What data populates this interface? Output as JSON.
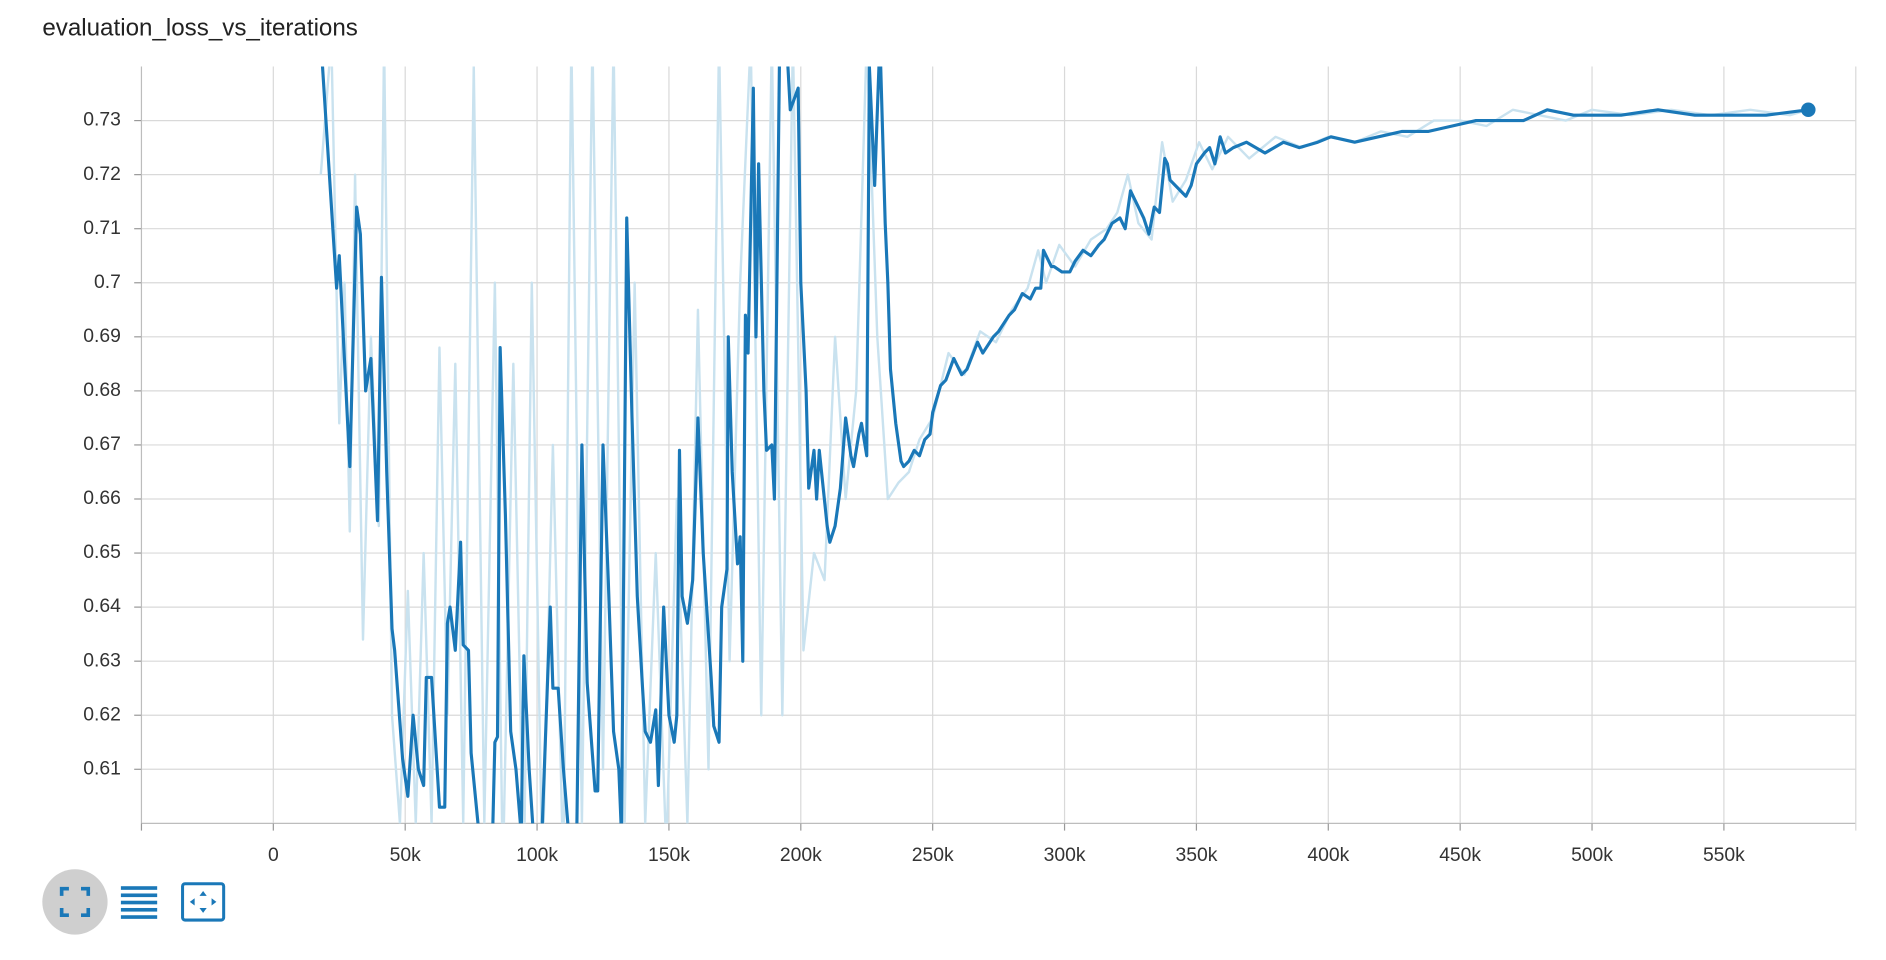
{
  "chart_data": {
    "type": "line",
    "title": "evaluation_loss_vs_iterations",
    "xlim": [
      -50000,
      600000
    ],
    "ylim": [
      0.6,
      0.74
    ],
    "xticks": [
      {
        "value": 0,
        "label": "0"
      },
      {
        "value": 50000,
        "label": "50k"
      },
      {
        "value": 100000,
        "label": "100k"
      },
      {
        "value": 150000,
        "label": "150k"
      },
      {
        "value": 200000,
        "label": "200k"
      },
      {
        "value": 250000,
        "label": "250k"
      },
      {
        "value": 300000,
        "label": "300k"
      },
      {
        "value": 350000,
        "label": "350k"
      },
      {
        "value": 400000,
        "label": "400k"
      },
      {
        "value": 450000,
        "label": "450k"
      },
      {
        "value": 500000,
        "label": "500k"
      },
      {
        "value": 550000,
        "label": "550k"
      }
    ],
    "yticks": [
      0.61,
      0.62,
      0.63,
      0.64,
      0.65,
      0.66,
      0.67,
      0.68,
      0.69,
      0.7,
      0.71,
      0.72,
      0.73
    ],
    "grid": true,
    "series": [
      {
        "color": "#c9e2ef",
        "x": [
          18000,
          22000,
          25000,
          27000,
          29000,
          31000,
          34000,
          37000,
          40000,
          42000,
          45000,
          48000,
          51000,
          54000,
          57000,
          60000,
          63000,
          66000,
          69000,
          72000,
          76000,
          80000,
          84000,
          87000,
          91000,
          95000,
          98000,
          102000,
          106000,
          110000,
          113000,
          117000,
          121000,
          125000,
          129000,
          133000,
          137000,
          141000,
          145000,
          149000,
          153000,
          157000,
          161000,
          165000,
          169000,
          173000,
          177000,
          181000,
          185000,
          189000,
          193000,
          197000,
          201000,
          205000,
          209000,
          213000,
          217000,
          221000,
          225000,
          229000,
          233000,
          237000,
          241000,
          245000,
          250000,
          256000,
          262000,
          268000,
          274000,
          280000,
          286000,
          290000,
          293000,
          298000,
          304000,
          310000,
          316000,
          320000,
          324000,
          328000,
          333000,
          337000,
          341000,
          346000,
          351000,
          356000,
          362000,
          370000,
          380000,
          390000,
          400000,
          410000,
          420000,
          430000,
          440000,
          450000,
          460000,
          470000,
          480000,
          490000,
          500000,
          515000,
          530000,
          545000,
          560000,
          575000,
          582000
        ],
        "values": [
          0.72,
          0.745,
          0.674,
          0.7,
          0.654,
          0.72,
          0.634,
          0.69,
          0.655,
          0.745,
          0.62,
          0.6,
          0.643,
          0.6,
          0.65,
          0.6,
          0.688,
          0.62,
          0.685,
          0.6,
          0.74,
          0.6,
          0.7,
          0.59,
          0.685,
          0.59,
          0.7,
          0.59,
          0.67,
          0.59,
          0.745,
          0.6,
          0.745,
          0.61,
          0.745,
          0.595,
          0.7,
          0.6,
          0.65,
          0.595,
          0.66,
          0.6,
          0.695,
          0.61,
          0.745,
          0.63,
          0.7,
          0.745,
          0.62,
          0.745,
          0.62,
          0.745,
          0.632,
          0.65,
          0.645,
          0.69,
          0.66,
          0.68,
          0.745,
          0.69,
          0.66,
          0.663,
          0.665,
          0.671,
          0.675,
          0.687,
          0.683,
          0.691,
          0.689,
          0.695,
          0.699,
          0.706,
          0.7,
          0.707,
          0.703,
          0.708,
          0.71,
          0.713,
          0.72,
          0.711,
          0.708,
          0.726,
          0.715,
          0.719,
          0.726,
          0.721,
          0.727,
          0.723,
          0.727,
          0.725,
          0.727,
          0.726,
          0.728,
          0.727,
          0.73,
          0.73,
          0.729,
          0.732,
          0.731,
          0.73,
          0.732,
          0.731,
          0.732,
          0.731,
          0.732,
          0.731,
          0.732
        ]
      },
      {
        "color": "#1a78b8",
        "x": [
          18000,
          24000,
          25000,
          29000,
          31600,
          33000,
          35000,
          37000,
          39500,
          41000,
          43000,
          45000,
          46000,
          49000,
          51000,
          53000,
          55000,
          57000,
          58000,
          60000,
          63000,
          65000,
          66000,
          67000,
          69000,
          71000,
          72000,
          74000,
          75000,
          78000,
          81000,
          83000,
          84000,
          85000,
          86000,
          88000,
          90000,
          92000,
          94000,
          95000,
          97000,
          99000,
          102000,
          105000,
          106000,
          108000,
          110000,
          112000,
          115000,
          117000,
          119000,
          122000,
          123000,
          125000,
          127000,
          129000,
          131000,
          132000,
          134000,
          136000,
          138000,
          140000,
          141000,
          143000,
          145000,
          146000,
          148000,
          150000,
          152000,
          153000,
          154000,
          155000,
          157000,
          159000,
          161000,
          163000,
          166000,
          167000,
          169000,
          170000,
          172000,
          172500,
          174000,
          176000,
          177000,
          178000,
          179000,
          180000,
          182000,
          183000,
          184000,
          186000,
          187000,
          189000,
          190000,
          192000,
          194000,
          196000,
          199000,
          200000,
          202000,
          203000,
          205000,
          206000,
          207000,
          210000,
          211000,
          213000,
          215000,
          217000,
          219000,
          220000,
          222000,
          223000,
          225000,
          226000,
          228000,
          230000,
          232000,
          233000,
          234000,
          236000,
          238000,
          239000,
          241000,
          243000,
          245000,
          247000,
          249000,
          250000,
          253000,
          255000,
          258000,
          261000,
          263000,
          267000,
          269000,
          273000,
          275000,
          279000,
          281000,
          284000,
          287000,
          289000,
          291000,
          292000,
          295000,
          296000,
          299000,
          302000,
          304000,
          307000,
          310000,
          313000,
          315000,
          318000,
          321000,
          323000,
          325000,
          328000,
          330000,
          332000,
          334000,
          336000,
          338000,
          339000,
          340000,
          344000,
          346000,
          348000,
          350000,
          353000,
          355000,
          357000,
          359000,
          361000,
          364000,
          369000,
          376000,
          383000,
          389000,
          396000,
          401000,
          410000,
          419000,
          428000,
          438000,
          447000,
          456000,
          465000,
          474000,
          483000,
          493000,
          502000,
          511000,
          525000,
          539000,
          552000,
          566000,
          582000
        ],
        "values": [
          0.745,
          0.699,
          0.705,
          0.666,
          0.714,
          0.709,
          0.68,
          0.686,
          0.656,
          0.701,
          0.665,
          0.636,
          0.632,
          0.612,
          0.605,
          0.62,
          0.61,
          0.607,
          0.627,
          0.627,
          0.603,
          0.603,
          0.637,
          0.64,
          0.632,
          0.652,
          0.633,
          0.632,
          0.613,
          0.598,
          0.595,
          0.595,
          0.615,
          0.616,
          0.688,
          0.657,
          0.617,
          0.61,
          0.598,
          0.631,
          0.61,
          0.595,
          0.6,
          0.64,
          0.625,
          0.625,
          0.61,
          0.598,
          0.596,
          0.67,
          0.626,
          0.606,
          0.606,
          0.67,
          0.645,
          0.617,
          0.61,
          0.598,
          0.712,
          0.675,
          0.642,
          0.625,
          0.617,
          0.615,
          0.621,
          0.607,
          0.64,
          0.62,
          0.615,
          0.62,
          0.669,
          0.642,
          0.637,
          0.645,
          0.675,
          0.65,
          0.627,
          0.618,
          0.615,
          0.64,
          0.647,
          0.69,
          0.665,
          0.648,
          0.653,
          0.63,
          0.694,
          0.687,
          0.736,
          0.69,
          0.722,
          0.68,
          0.669,
          0.67,
          0.66,
          0.745,
          0.75,
          0.732,
          0.736,
          0.7,
          0.68,
          0.662,
          0.669,
          0.66,
          0.669,
          0.655,
          0.652,
          0.655,
          0.662,
          0.675,
          0.668,
          0.666,
          0.672,
          0.674,
          0.668,
          0.74,
          0.718,
          0.745,
          0.711,
          0.7,
          0.684,
          0.674,
          0.667,
          0.666,
          0.667,
          0.669,
          0.668,
          0.671,
          0.672,
          0.676,
          0.681,
          0.682,
          0.686,
          0.683,
          0.684,
          0.689,
          0.687,
          0.69,
          0.691,
          0.694,
          0.695,
          0.698,
          0.697,
          0.699,
          0.699,
          0.706,
          0.703,
          0.703,
          0.702,
          0.702,
          0.704,
          0.706,
          0.705,
          0.707,
          0.708,
          0.711,
          0.712,
          0.71,
          0.717,
          0.714,
          0.712,
          0.709,
          0.714,
          0.713,
          0.723,
          0.722,
          0.719,
          0.717,
          0.716,
          0.718,
          0.722,
          0.724,
          0.725,
          0.722,
          0.727,
          0.724,
          0.725,
          0.726,
          0.724,
          0.726,
          0.725,
          0.726,
          0.727,
          0.726,
          0.727,
          0.728,
          0.728,
          0.729,
          0.73,
          0.73,
          0.73,
          0.732,
          0.731,
          0.731,
          0.731,
          0.732,
          0.731,
          0.731,
          0.731,
          0.732
        ]
      }
    ]
  }
}
